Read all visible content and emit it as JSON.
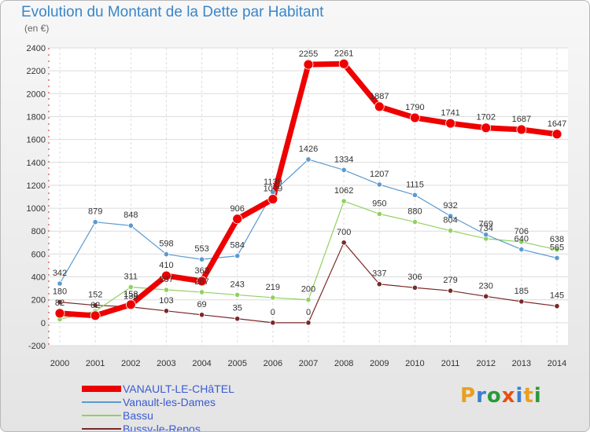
{
  "title": "Evolution du Montant de la Dette par Habitant",
  "subtitle": "(en €)",
  "logo": {
    "text": "Proxiti",
    "colors": [
      "#e8a020",
      "#3a7fd0",
      "#2a9a3a",
      "#e85010",
      "#3a7fd0",
      "#e8a020",
      "#2a9a3a"
    ]
  },
  "chart_data": {
    "type": "line",
    "x": [
      "2000",
      "2001",
      "2002",
      "2003",
      "2004",
      "2005",
      "2006",
      "2007",
      "2008",
      "2009",
      "2010",
      "2011",
      "2012",
      "2013",
      "2014"
    ],
    "ylim": [
      -200,
      2400
    ],
    "yticks": [
      -200,
      0,
      200,
      400,
      600,
      800,
      1000,
      1200,
      1400,
      1600,
      1800,
      2000,
      2200,
      2400
    ],
    "grid": true,
    "legend_position": "bottom-left",
    "series": [
      {
        "name": "Bussy-le-Repos",
        "color": "#7a2828",
        "width": 1.2,
        "values": [
          180,
          152,
          138,
          103,
          69,
          35,
          0,
          0,
          700,
          337,
          306,
          279,
          230,
          185,
          145
        ],
        "labels": [
          "180",
          "152",
          "138",
          "103",
          "69",
          "35",
          "0",
          "0",
          "700",
          "337",
          "306",
          "279",
          "230",
          "185",
          "145"
        ]
      },
      {
        "name": "Bassu",
        "color": "#90d060",
        "width": 1.2,
        "values": [
          30,
          100,
          311,
          287,
          267,
          243,
          219,
          200,
          1062,
          950,
          880,
          804,
          734,
          706,
          638
        ],
        "labels": [
          "",
          "",
          "311",
          "287",
          "267",
          "243",
          "219",
          "200",
          "1062",
          "950",
          "880",
          "804",
          "734",
          "706",
          "638"
        ]
      },
      {
        "name": "Vanault-les-Dames",
        "color": "#5a9ad0",
        "width": 1.2,
        "values": [
          342,
          879,
          848,
          598,
          553,
          584,
          1139,
          1426,
          1334,
          1207,
          1115,
          932,
          769,
          640,
          565
        ],
        "labels": [
          "342",
          "879",
          "848",
          "598",
          "553",
          "584",
          "1139",
          "1426",
          "1334",
          "1207",
          "1115",
          "932",
          "769",
          "640",
          "565"
        ]
      },
      {
        "name": "VANAULT-LE-CHâTEL",
        "color": "#ee0000",
        "width": 7,
        "values": [
          82,
          62,
          158,
          410,
          363,
          906,
          1079,
          2255,
          2261,
          1887,
          1790,
          1741,
          1702,
          1687,
          1647
        ],
        "labels": [
          "82",
          "62",
          "158",
          "410",
          "363",
          "906",
          "1079",
          "2255",
          "2261",
          "1887",
          "1790",
          "1741",
          "1702",
          "1687",
          "1647"
        ]
      }
    ]
  }
}
